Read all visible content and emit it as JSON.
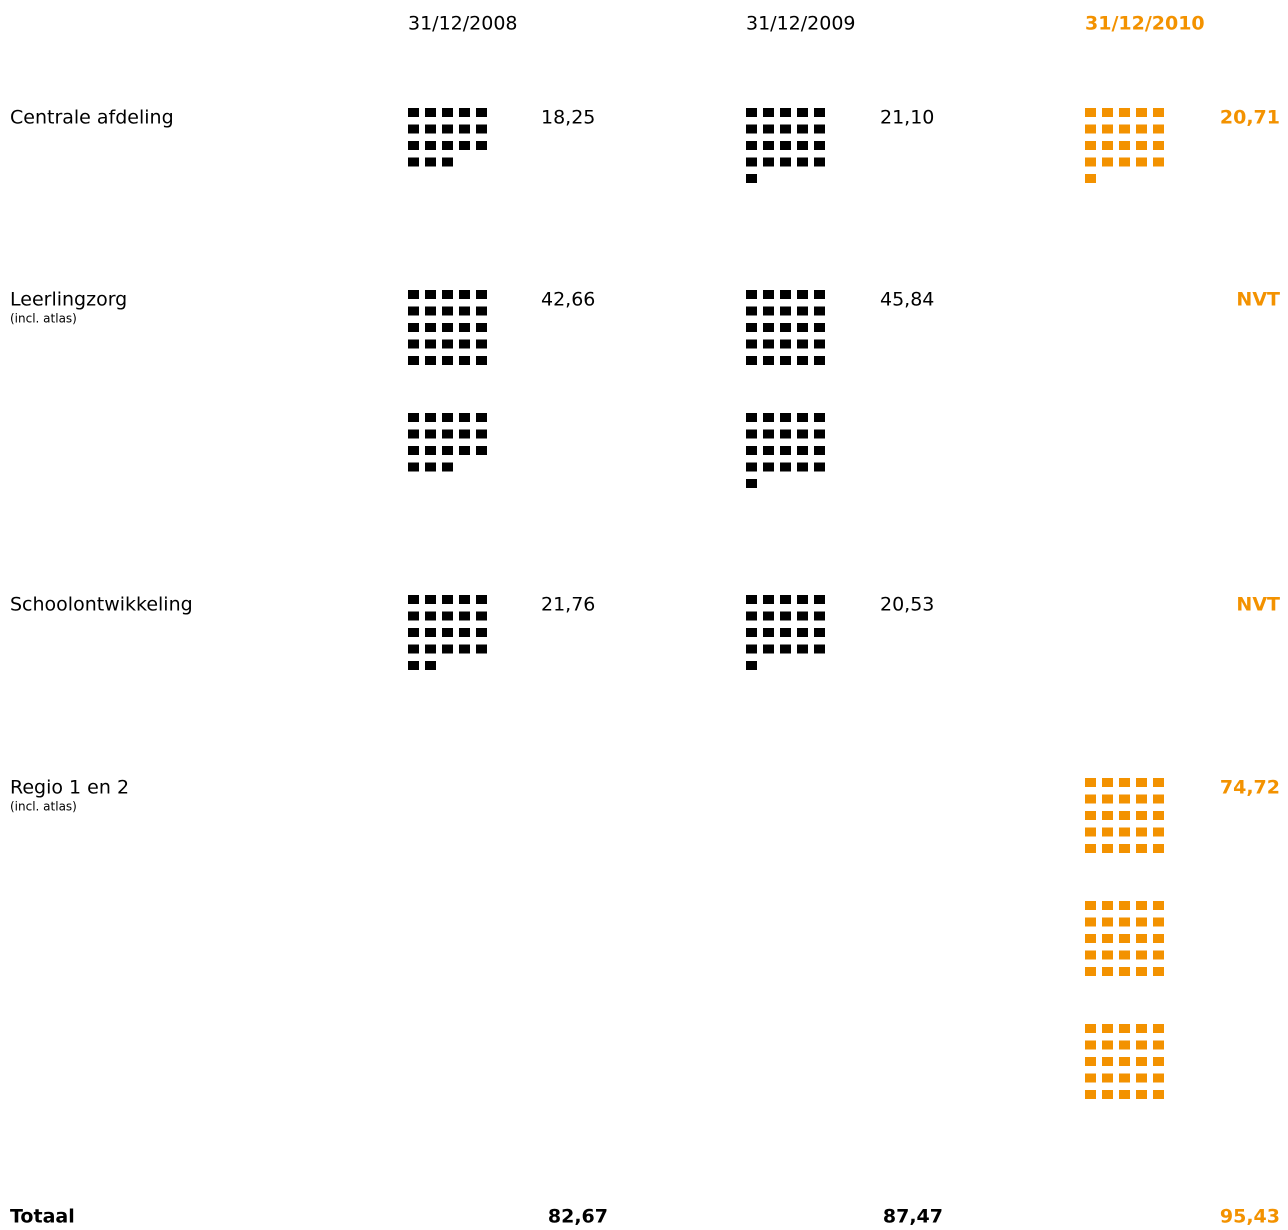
{
  "columns": [
    "31/12/2008",
    "31/12/2009",
    "31/12/2010"
  ],
  "rows": [
    {
      "label": "Centrale afdeling",
      "cells": [
        {
          "value": 18.25,
          "label": "18,25"
        },
        {
          "value": 21.1,
          "label": "21,10"
        },
        {
          "value": 20.71,
          "label": "20,71"
        }
      ]
    },
    {
      "label": "Leerlingzorg",
      "note": "(incl. atlas)",
      "cells": [
        {
          "value": 42.66,
          "label": "42,66"
        },
        {
          "value": 45.84,
          "label": "45,84"
        },
        "NVT"
      ]
    },
    {
      "label": "Schoolontwikkeling",
      "cells": [
        {
          "value": 21.76,
          "label": "21,76"
        },
        {
          "value": 20.53,
          "label": "20,53"
        },
        "NVT"
      ]
    },
    {
      "label": "Regio 1 en 2",
      "note": "(incl. atlas)",
      "cells": [
        null,
        null,
        {
          "value": 74.72,
          "label": "74,72"
        }
      ]
    }
  ],
  "total": {
    "label": "Totaal",
    "cells": [
      {
        "value": 82.67,
        "label": "82,67"
      },
      {
        "value": 87.47,
        "label": "87,47"
      },
      {
        "value": 95.43,
        "label": "95,43"
      }
    ]
  },
  "colors": {
    "past": "#000000",
    "current": "#f39200"
  }
}
